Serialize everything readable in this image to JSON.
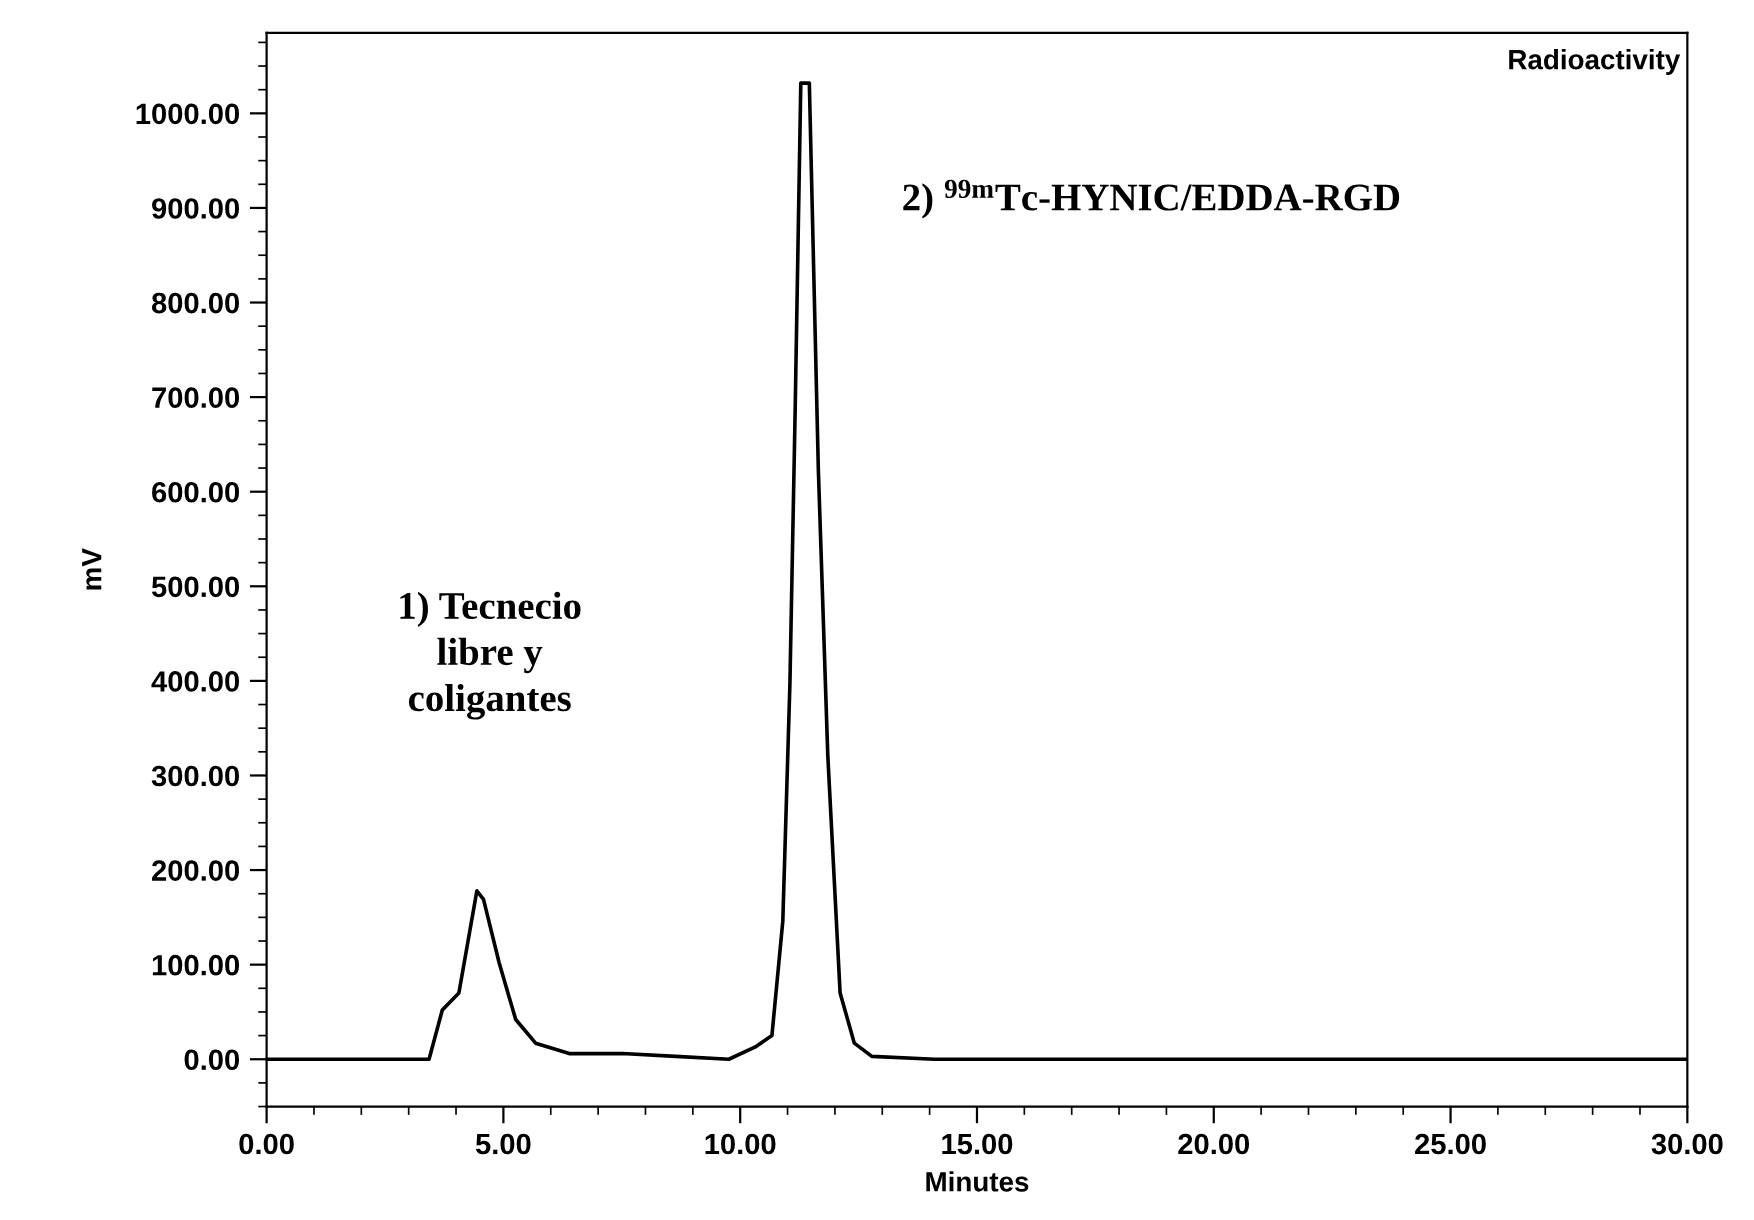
{
  "chart_data": {
    "type": "line",
    "title": "Radioactivity",
    "xlabel": "Minutes",
    "ylabel": "mV",
    "x": [
      0,
      3.43,
      3.71,
      4.06,
      4.44,
      4.58,
      4.91,
      5.26,
      5.68,
      6.39,
      7.51,
      8.64,
      9.76,
      10.32,
      10.67,
      10.9,
      11.05,
      11.16,
      11.28,
      11.46,
      11.65,
      11.85,
      12.11,
      12.41,
      12.78,
      14.1,
      30
    ],
    "series": [
      {
        "color": "#000000",
        "values": [
          0,
          0,
          52,
          70,
          178,
          169,
          102,
          42,
          17,
          6,
          6,
          3,
          0,
          13,
          25,
          146,
          397,
          684,
          1032,
          1032,
          624,
          321,
          70,
          17,
          3,
          0,
          0
        ]
      }
    ],
    "xlim": [
      0,
      30
    ],
    "ylim": [
      -50,
      1085
    ],
    "xticks": [
      {
        "value": 0,
        "label": "0.00"
      },
      {
        "value": 5,
        "label": "5.00"
      },
      {
        "value": 10,
        "label": "10.00"
      },
      {
        "value": 15,
        "label": "15.00"
      },
      {
        "value": 20,
        "label": "20.00"
      },
      {
        "value": 25,
        "label": "25.00"
      },
      {
        "value": 30,
        "label": "30.00"
      }
    ],
    "yticks": [
      {
        "value": 0,
        "label": "0.00"
      },
      {
        "value": 100,
        "label": "100.00"
      },
      {
        "value": 200,
        "label": "200.00"
      },
      {
        "value": 300,
        "label": "300.00"
      },
      {
        "value": 400,
        "label": "400.00"
      },
      {
        "value": 500,
        "label": "500.00"
      },
      {
        "value": 600,
        "label": "600.00"
      },
      {
        "value": 700,
        "label": "700.00"
      },
      {
        "value": 800,
        "label": "800.00"
      },
      {
        "value": 900,
        "label": "900.00"
      },
      {
        "value": 1000,
        "label": "1000.00"
      }
    ],
    "annotations": [
      "1) Tecnecio\nlibre y\ncoligantes",
      "2) $^{99m}$Tc-HYNIC/EDDA-RGD"
    ],
    "grid": false,
    "legend": false,
    "marker": "none",
    "line_style": "solid"
  }
}
